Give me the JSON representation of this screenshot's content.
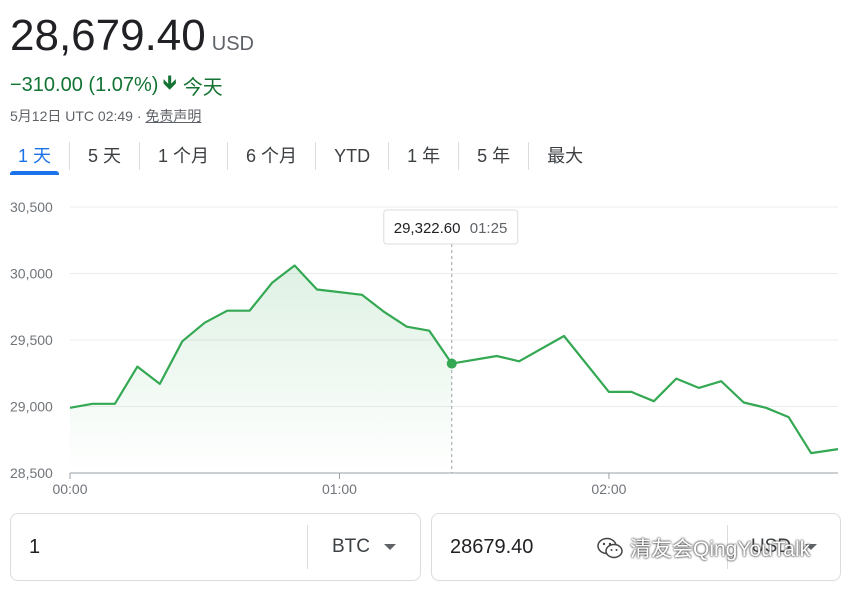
{
  "header": {
    "price": "28,679.40",
    "currency": "USD",
    "change": "−310.00 (1.07%)",
    "change_period": "今天",
    "timestamp": "5月12日 UTC 02:49",
    "separator": "·",
    "disclaimer": "免责声明",
    "change_color": "#137333"
  },
  "tabs": [
    {
      "label": "1 天",
      "active": true
    },
    {
      "label": "5 天",
      "active": false
    },
    {
      "label": "1 个月",
      "active": false
    },
    {
      "label": "6 个月",
      "active": false
    },
    {
      "label": "YTD",
      "active": false
    },
    {
      "label": "1 年",
      "active": false
    },
    {
      "label": "5 年",
      "active": false
    },
    {
      "label": "最大",
      "active": false
    }
  ],
  "chart_data": {
    "type": "area",
    "line_color": "#34a853",
    "grid": true,
    "ylim": [
      28500,
      30500
    ],
    "y_ticks": [
      "30,500",
      "30,000",
      "29,500",
      "29,000",
      "28,500"
    ],
    "y_tick_values": [
      30500,
      30000,
      29500,
      29000,
      28500
    ],
    "x_ticks": [
      "00:00",
      "01:00",
      "02:00"
    ],
    "x_tick_values": [
      0,
      60,
      120
    ],
    "xlim": [
      0,
      171
    ],
    "series": [
      {
        "points": [
          [
            0,
            28990
          ],
          [
            5,
            29020
          ],
          [
            10,
            29020
          ],
          [
            15,
            29300
          ],
          [
            20,
            29170
          ],
          [
            25,
            29490
          ],
          [
            30,
            29630
          ],
          [
            35,
            29720
          ],
          [
            40,
            29720
          ],
          [
            45,
            29930
          ],
          [
            50,
            30060
          ],
          [
            55,
            29880
          ],
          [
            60,
            29860
          ],
          [
            65,
            29840
          ],
          [
            70,
            29710
          ],
          [
            75,
            29600
          ],
          [
            80,
            29570
          ],
          [
            85,
            29322.6
          ],
          [
            95,
            29380
          ],
          [
            100,
            29340
          ],
          [
            110,
            29530
          ],
          [
            120,
            29110
          ],
          [
            125,
            29110
          ],
          [
            130,
            29040
          ],
          [
            135,
            29210
          ],
          [
            140,
            29140
          ],
          [
            145,
            29190
          ],
          [
            150,
            29030
          ],
          [
            155,
            28990
          ],
          [
            160,
            28920
          ],
          [
            165,
            28650
          ],
          [
            171,
            28680
          ]
        ]
      }
    ],
    "tooltip": {
      "value": "29,322.60",
      "time": "01:25",
      "x": 85,
      "y": 29322.6
    }
  },
  "converter": {
    "left_value": "1",
    "left_currency": "BTC",
    "right_value": "28679.40",
    "right_currency": "USD"
  },
  "watermark": {
    "text": "清友会QingYouTalk",
    "icon": "wechat-icon"
  }
}
